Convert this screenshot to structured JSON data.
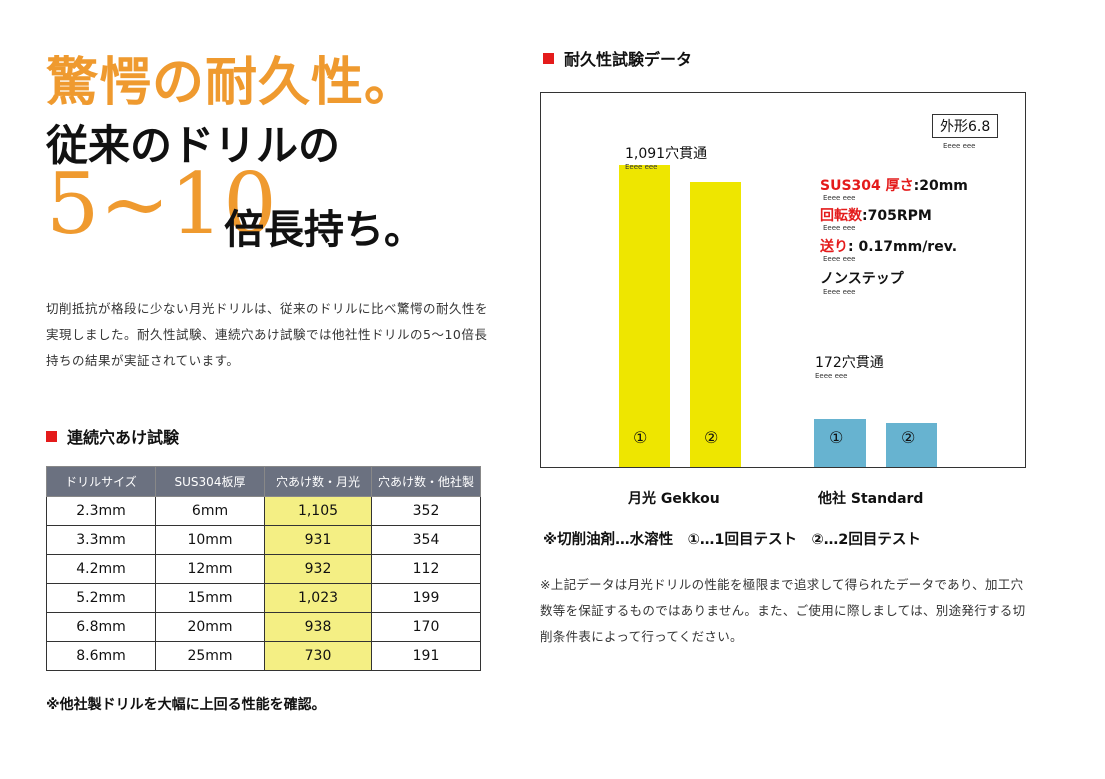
{
  "headline": {
    "line1": "驚愕の耐久性。",
    "line2": "従来のドリルの",
    "big_number": "5~10",
    "line3": "倍長持ち。"
  },
  "description": "切削抵抗が格段に少ない月光ドリルは、従来のドリルに比べ驚愕の耐久性を実現しました。耐久性試験、連続穴あけ試験では他社性ドリルの5～10倍長持ちの結果が実証されています。",
  "table_section": {
    "title": "連続穴あけ試験",
    "headers": [
      "ドリルサイズ",
      "SUS304板厚",
      "穴あけ数・月光",
      "穴あけ数・他社製"
    ],
    "rows": [
      [
        "2.3mm",
        "6mm",
        "1,105",
        "352"
      ],
      [
        "3.3mm",
        "10mm",
        "931",
        "354"
      ],
      [
        "4.2mm",
        "12mm",
        "932",
        "112"
      ],
      [
        "5.2mm",
        "15mm",
        "1,023",
        "199"
      ],
      [
        "6.8mm",
        "20mm",
        "938",
        "170"
      ],
      [
        "8.6mm",
        "25mm",
        "730",
        "191"
      ]
    ],
    "highlight_color": "#f4ef84",
    "note": "※他社製ドリルを大幅に上回る性能を確認。"
  },
  "chart_section": {
    "title": "耐久性試験データ",
    "note": "※切削油剤…水溶性　①…1回目テスト　②…2回目テスト",
    "disclaimer": "※上記データは月光ドリルの性能を極限まで追求して得られたデータであり、加工穴数等を保証するものではありません。また、ご使用に際しましては、別途発行する切削条件表によって行ってください。"
  },
  "chart_data": {
    "type": "bar",
    "categories": [
      "月光 Gekkou",
      "他社 Standard"
    ],
    "series": [
      {
        "values": [
          1091,
          172
        ],
        "tag": "①"
      },
      {
        "values": [
          1030,
          158
        ],
        "tag": "②"
      }
    ],
    "colors": [
      "#eee600",
      "#67b3d0"
    ],
    "ylim": [
      0,
      1350
    ],
    "annotations": {
      "gekkou": "1,091穴貫通",
      "standard": "172穴貫通",
      "subtext": "Eeee eee"
    },
    "conditions": {
      "diameter": "外形6.8",
      "material_label": "SUS304 厚さ",
      "material_value": ":20mm",
      "speed_label": "回転数",
      "speed_value": ":705RPM",
      "feed_label": "送り",
      "feed_value": ": 0.17mm/rev.",
      "mode": "ノンステップ"
    },
    "grid": false
  }
}
